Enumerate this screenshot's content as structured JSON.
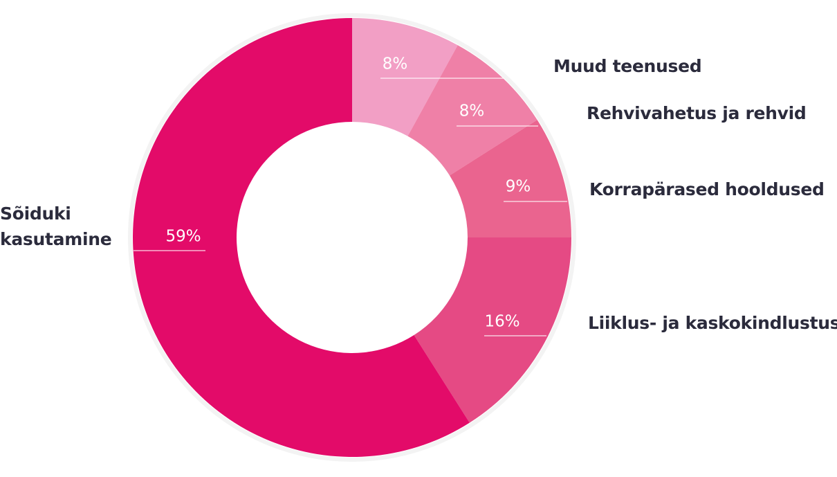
{
  "chart_data": {
    "type": "donut",
    "categories": [
      "Muud teenused",
      "Rehvivahetus ja rehvid",
      "Korrapärased hooldused",
      "Liiklus- ja kaskokindlustus",
      "Sõiduki kasutamine"
    ],
    "values": [
      8,
      8,
      9,
      16,
      59
    ],
    "value_labels": [
      "8%",
      "8%",
      "9%",
      "16%",
      "59%"
    ],
    "colors": [
      "#f29fc5",
      "#ef80a7",
      "#ea648f",
      "#e54a84",
      "#e30b69"
    ]
  }
}
